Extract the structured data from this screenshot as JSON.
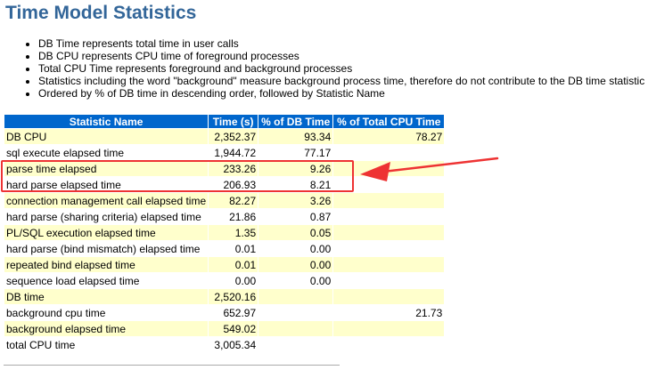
{
  "title": "Time Model Statistics",
  "bullets": [
    "DB Time represents total time in user calls",
    "DB CPU represents CPU time of foreground processes",
    "Total CPU Time represents foreground and background processes",
    "Statistics including the word \"background\" measure background process time, therefore do not contribute to the DB time statistic",
    "Ordered by % of DB time in descending order, followed by Statistic Name"
  ],
  "table": {
    "headers": [
      "Statistic Name",
      "Time (s)",
      "% of DB Time",
      "% of Total CPU Time"
    ],
    "rows": [
      [
        "DB CPU",
        "2,352.37",
        "93.34",
        "78.27"
      ],
      [
        "sql execute elapsed time",
        "1,944.72",
        "77.17",
        ""
      ],
      [
        "parse time elapsed",
        "233.26",
        "9.26",
        ""
      ],
      [
        "hard parse elapsed time",
        "206.93",
        "8.21",
        ""
      ],
      [
        "connection management call elapsed time",
        "82.27",
        "3.26",
        ""
      ],
      [
        "hard parse (sharing criteria) elapsed time",
        "21.86",
        "0.87",
        ""
      ],
      [
        "PL/SQL execution elapsed time",
        "1.35",
        "0.05",
        ""
      ],
      [
        "hard parse (bind mismatch) elapsed time",
        "0.01",
        "0.00",
        ""
      ],
      [
        "repeated bind elapsed time",
        "0.01",
        "0.00",
        ""
      ],
      [
        "sequence load elapsed time",
        "0.00",
        "0.00",
        ""
      ],
      [
        "DB time",
        "2,520.16",
        "",
        ""
      ],
      [
        "background cpu time",
        "652.97",
        "",
        "21.73"
      ],
      [
        "background elapsed time",
        "549.02",
        "",
        ""
      ],
      [
        "total CPU time",
        "3,005.34",
        "",
        ""
      ]
    ]
  },
  "annotation": {
    "box_color": "#ee3333",
    "arrow_color": "#ee3333"
  },
  "colors": {
    "title": "#336699",
    "header_bg": "#0066cc",
    "row_odd": "#ffffcc",
    "row_even": "#ffffff"
  }
}
